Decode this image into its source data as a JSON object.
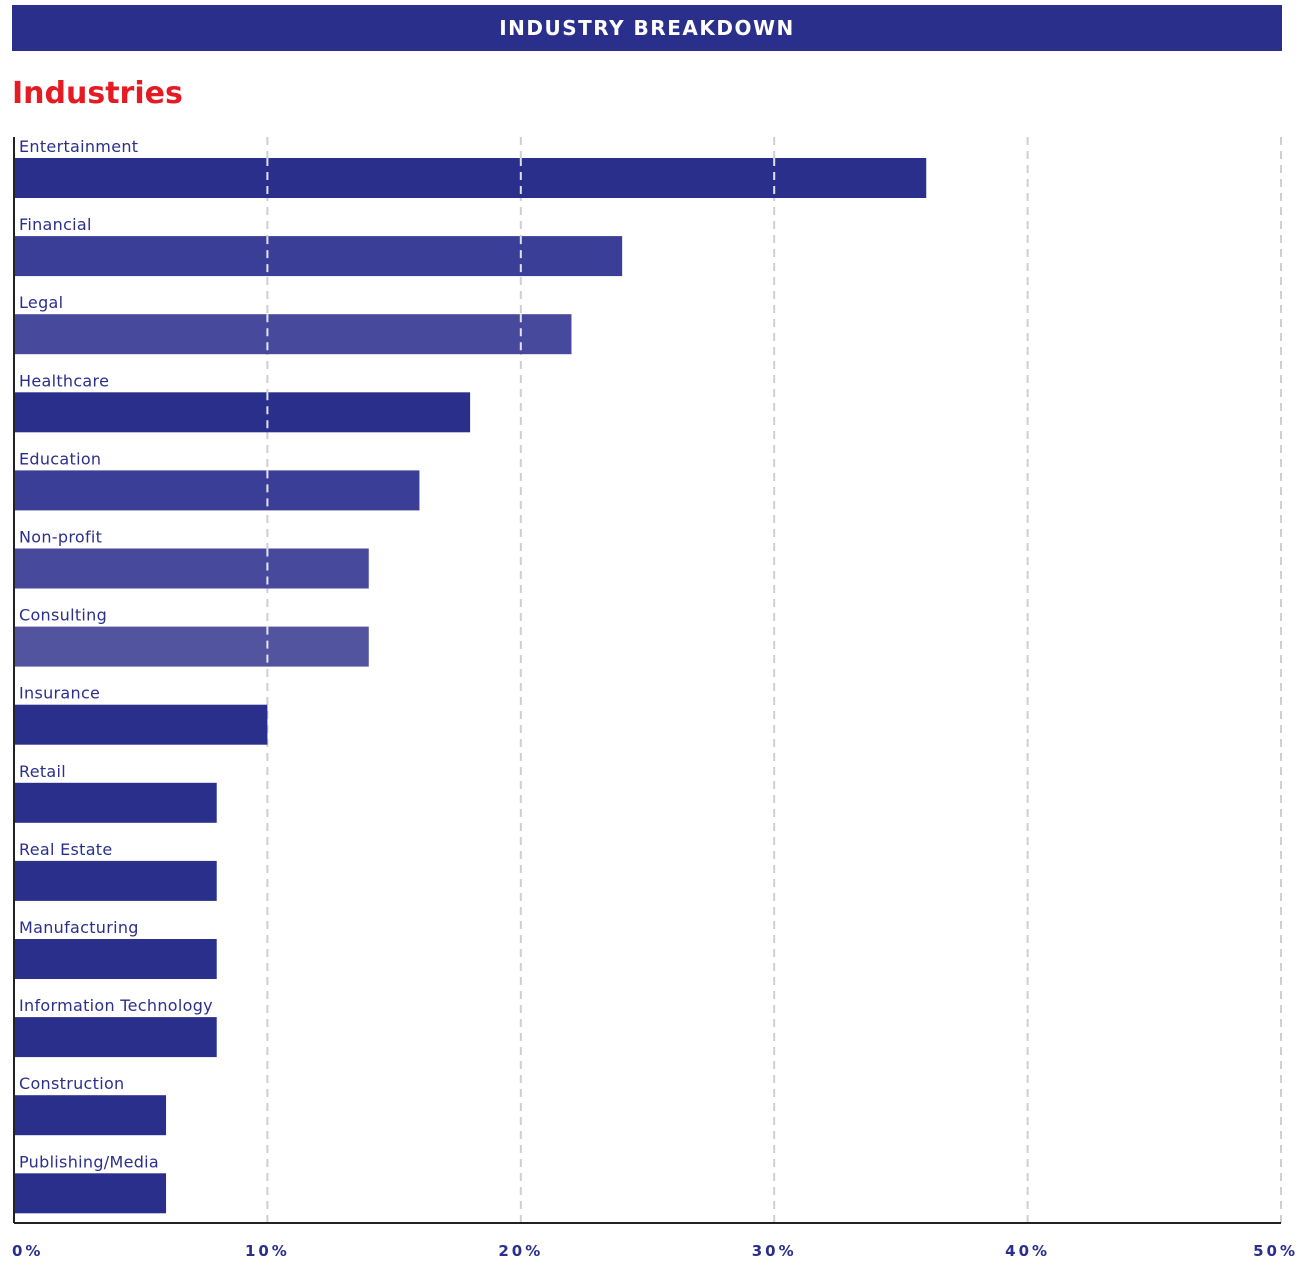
{
  "header": {
    "banner": "INDUSTRY BREAKDOWN"
  },
  "chart_data": {
    "type": "bar",
    "orientation": "horizontal",
    "title": "Industries",
    "categories": [
      "Entertainment",
      "Financial",
      "Legal",
      "Healthcare",
      "Education",
      "Non-profit",
      "Consulting",
      "Insurance",
      "Retail",
      "Real Estate",
      "Manufacturing",
      "Information Technology",
      "Construction",
      "Publishing/Media"
    ],
    "values": [
      36,
      24,
      22,
      18,
      16,
      14,
      14,
      10,
      8,
      8,
      8,
      8,
      6,
      6
    ],
    "xlim": [
      0,
      50
    ],
    "xticks": [
      "0%",
      "10%",
      "20%",
      "30%",
      "40%",
      "50%"
    ],
    "grid": true,
    "legend": "none",
    "colors": {
      "primary": "#2b2f8c",
      "shades": [
        "#2b2f8c",
        "#3b3e96",
        "#474a9c",
        "#2b2f8c",
        "#3b3e96",
        "#474a9c",
        "#52549f",
        "#2b2f8c",
        "#2b2f8c",
        "#2b2f8c",
        "#2b2f8c",
        "#2b2f8c",
        "#2b2f8c",
        "#2b2f8c"
      ],
      "title": "#e51b24",
      "grid": "#cfcfcf"
    }
  }
}
